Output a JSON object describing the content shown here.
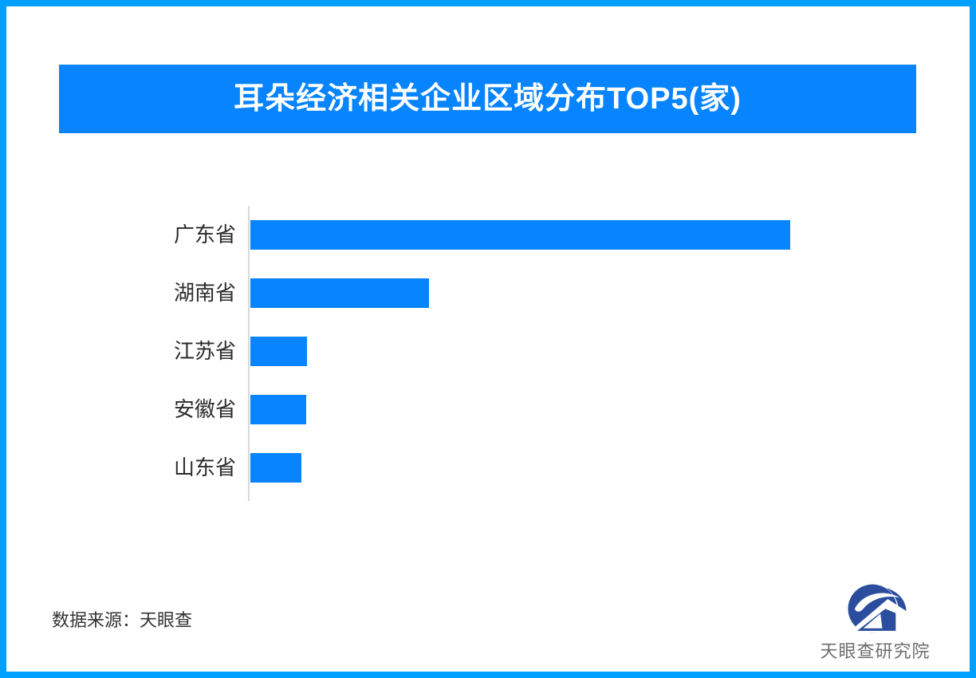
{
  "page": {
    "background": "#FFFFFF",
    "frame_color": "#00A0FF"
  },
  "header": {
    "title": "耳朵经济相关企业区域分布TOP5(家)",
    "bg_color": "#0884FF",
    "text_color": "#FFFFFF"
  },
  "chart_data": {
    "type": "bar",
    "orientation": "horizontal",
    "title": "耳朵经济相关企业区域分布TOP5(家)",
    "categories": [
      "广东省",
      "湖南省",
      "江苏省",
      "安徽省",
      "山东省"
    ],
    "values": [
      100,
      33.1,
      10.5,
      10.3,
      9.5
    ],
    "values_unit": "relative length, longest bar = 100 (chart shows no numeric axis, ticks or data labels)",
    "bar_color": "#0884FF",
    "axis_line_color": "#D8D8D8",
    "grid": false,
    "legend": "none",
    "value_labels_shown": false
  },
  "footer": {
    "source_label": "数据来源：天眼查"
  },
  "logo": {
    "icon": "tianyancha-eye-logo",
    "text": "天眼查研究院",
    "icon_color": "#2B4D9E",
    "text_color": "#6E6E6E"
  }
}
